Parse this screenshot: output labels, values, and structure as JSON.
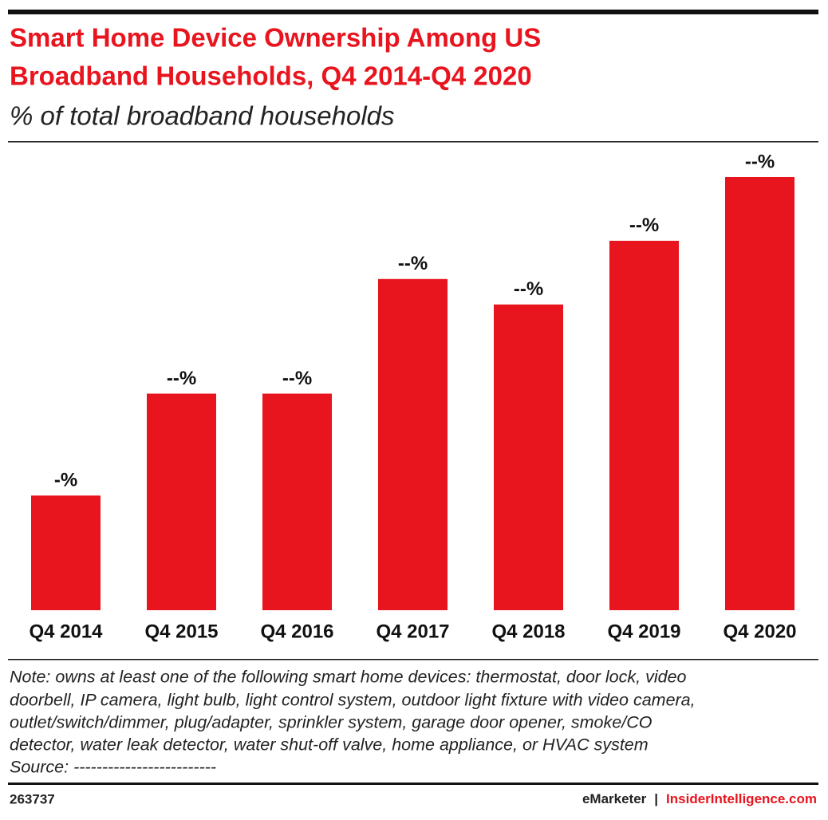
{
  "chart_data": {
    "type": "bar",
    "title": [
      "Smart Home Device Ownership Among US",
      "Broadband Households, Q4 2014-Q4 2020"
    ],
    "subtitle": "% of total broadband households",
    "categories": [
      "Q4 2014",
      "Q4 2015",
      "Q4 2016",
      "Q4 2017",
      "Q4 2018",
      "Q4 2019",
      "Q4 2020"
    ],
    "values": [
      9,
      17,
      17,
      26,
      24,
      29,
      34
    ],
    "value_labels": [
      "-%",
      "--%",
      "--%",
      "--%",
      "--%",
      "--%",
      "--%"
    ],
    "color": "#e8141e",
    "note": [
      "Note: owns at least one of the following smart home devices: thermostat, door lock, video",
      "doorbell, IP camera, light bulb, light control system, outdoor light fixture with video camera,",
      "outlet/switch/dimmer, plug/adapter, sprinkler system, garage door opener, smoke/CO",
      "detector, water leak detector, water shut-off valve, home appliance, or HVAC system"
    ],
    "source": "Source: -------------------------",
    "footer": {
      "id": "263737",
      "brand": "eMarketer",
      "separator": "|",
      "site": "InsiderIntelligence.com"
    }
  }
}
